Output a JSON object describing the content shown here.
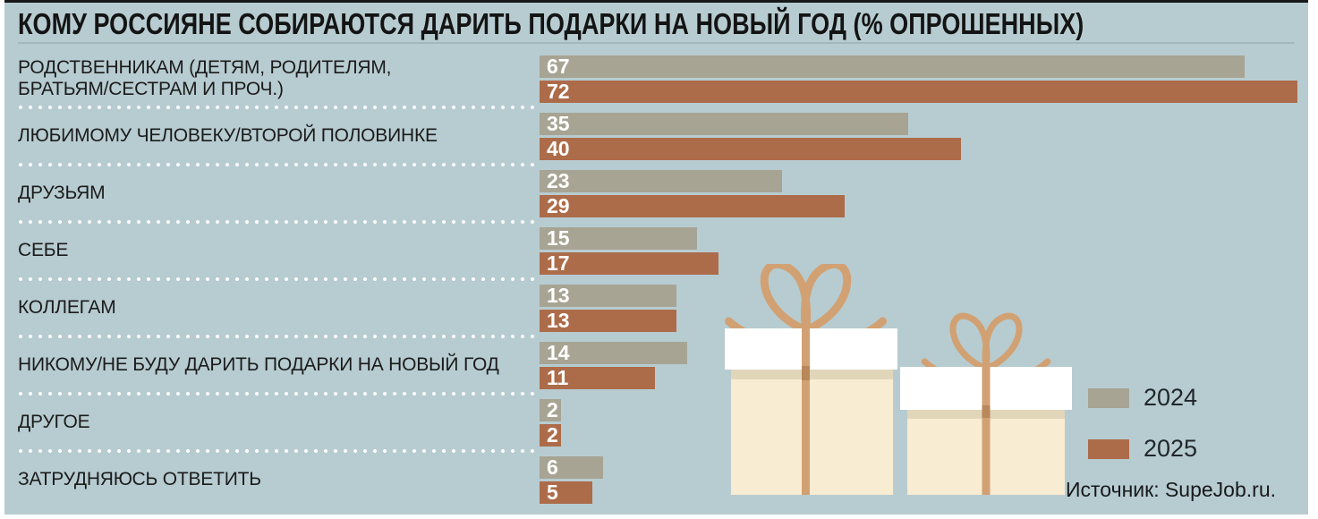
{
  "title": "КОМУ РОССИЯНЕ СОБИРАЮТСЯ ДАРИТЬ ПОДАРКИ НА НОВЫЙ ГОД (% ОПРОШЕННЫХ)",
  "source": "Источник: SupeJob.ru.",
  "legend": [
    {
      "label": "2024",
      "color": "#a7a494"
    },
    {
      "label": "2025",
      "color": "#ad6c49"
    }
  ],
  "colors": {
    "bg": "#b7ccd1",
    "bar_2024": "#a7a494",
    "bar_2025": "#ad6c49",
    "box_cream": "#f8ecd2",
    "box_shadow": "#e1d5ba",
    "ribbon": "#d2a173",
    "ribbon_dark": "#b8875a"
  },
  "chart_data": {
    "type": "bar",
    "orientation": "horizontal",
    "title": "КОМУ РОССИЯНЕ СОБИРАЮТСЯ ДАРИТЬ ПОДАРКИ НА НОВЫЙ ГОД (% ОПРОШЕННЫХ)",
    "xlabel": "",
    "ylabel": "",
    "value_unit": "% опрошенных",
    "max_value": 72,
    "grid": false,
    "legend_position": "bottom-right",
    "value_labels": "inside-left, white, bold",
    "categories": [
      "РОДСТВЕННИКАМ (ДЕТЯМ, РОДИТЕЛЯМ,\nБРАТЬЯМ/СЕСТРАМ И ПРОЧ.)",
      "ЛЮБИМОМУ ЧЕЛОВЕКУ/ВТОРОЙ ПОЛОВИНКЕ",
      "ДРУЗЬЯМ",
      "СЕБЕ",
      "КОЛЛЕГАМ",
      "НИКОМУ/НЕ БУДУ ДАРИТЬ ПОДАРКИ НА НОВЫЙ ГОД",
      "ДРУГОЕ",
      "ЗАТРУДНЯЮСЬ ОТВЕТИТЬ"
    ],
    "series": [
      {
        "name": "2024",
        "color": "#a7a494",
        "values": [
          67,
          35,
          23,
          15,
          13,
          14,
          2,
          6
        ]
      },
      {
        "name": "2025",
        "color": "#ad6c49",
        "values": [
          72,
          40,
          29,
          17,
          13,
          11,
          2,
          5
        ]
      }
    ]
  }
}
